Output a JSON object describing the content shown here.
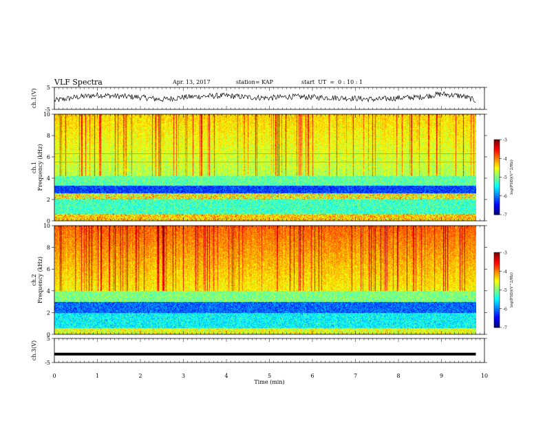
{
  "header": {
    "title": "VLF Spectra",
    "date": "Apr. 13, 2017",
    "station": "station= KAP",
    "start": "start  UT  =  0 : 10 : 1"
  },
  "chart_data": [
    {
      "type": "line",
      "name": "panel-ch1-waveform",
      "ylabel": "ch.1(V)",
      "ylim": [
        -5,
        5
      ],
      "yticks": [
        "5",
        "-5"
      ],
      "x": [
        0,
        0.5,
        1,
        1.5,
        2,
        2.5,
        3,
        3.5,
        4,
        4.5,
        5,
        5.5,
        6,
        6.5,
        7,
        7.5,
        8,
        8.5,
        9,
        9.5,
        9.8
      ],
      "values": [
        -1,
        0.5,
        1.5,
        1,
        0.5,
        -0.5,
        0.5,
        1,
        1.2,
        0.5,
        0.2,
        0.8,
        0.5,
        0.3,
        0,
        -0.5,
        0.2,
        0.6,
        2,
        1,
        -1
      ]
    },
    {
      "type": "heatmap",
      "name": "panel-ch1-spectrogram",
      "ylabel": "Frequency (kHz)",
      "channel_label": "ch.1",
      "ylim": [
        0,
        10
      ],
      "yticks": [
        "0",
        "2",
        "4",
        "6",
        "8",
        "10"
      ],
      "colorbar": {
        "label": "log(PSD)(V^2/Hz)",
        "range": [
          -7,
          -3
        ],
        "ticks": [
          "-3",
          "-4",
          "-5",
          "-6",
          "-7"
        ]
      }
    },
    {
      "type": "heatmap",
      "name": "panel-ch2-spectrogram",
      "ylabel": "Frequency (kHz)",
      "channel_label": "ch.2",
      "ylim": [
        0,
        10
      ],
      "yticks": [
        "0",
        "2",
        "4",
        "6",
        "8",
        "10"
      ],
      "colorbar": {
        "label": "log(PSD)(V^2/Hz)",
        "range": [
          -7,
          -3
        ],
        "ticks": [
          "-3",
          "-4",
          "-5",
          "-6",
          "-7"
        ]
      }
    },
    {
      "type": "line",
      "name": "panel-ch3-waveform",
      "ylabel": "ch.3(V)",
      "ylim": [
        -5,
        5
      ],
      "yticks": [
        "5",
        "-5"
      ],
      "x": [
        0,
        9.8
      ],
      "values": [
        -1.5,
        -1.5
      ]
    }
  ],
  "xaxis": {
    "label": "Time (min)",
    "range": [
      0,
      10
    ],
    "ticks": [
      "0",
      "1",
      "2",
      "3",
      "4",
      "5",
      "6",
      "7",
      "8",
      "9",
      "10"
    ]
  }
}
